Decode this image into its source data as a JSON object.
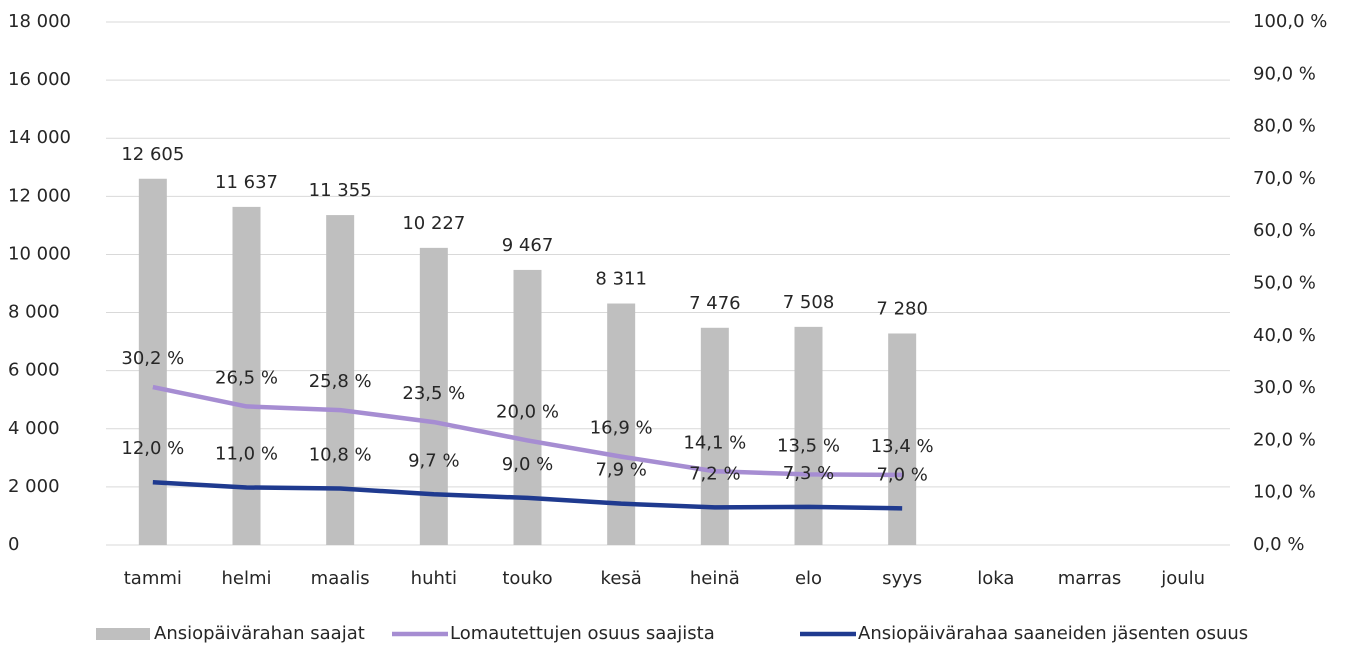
{
  "chart_data": {
    "type": "bar-line",
    "categories": [
      "tammi",
      "helmi",
      "maalis",
      "huhti",
      "touko",
      "kesä",
      "heinä",
      "elo",
      "syys",
      "loka",
      "marras",
      "joulu"
    ],
    "series": [
      {
        "name": "Ansiopäivärahan saajat",
        "type": "bar",
        "color": "#bfbfbf",
        "values": [
          12605,
          11637,
          11355,
          10227,
          9467,
          8311,
          7476,
          7508,
          7280,
          null,
          null,
          null
        ],
        "value_labels": [
          "12 605",
          "11 637",
          "11 355",
          "10 227",
          "9 467",
          "8 311",
          "7 476",
          "7 508",
          "7 280",
          null,
          null,
          null
        ]
      },
      {
        "name": "Lomautettujen osuus saajista",
        "type": "line",
        "axis": "y2",
        "color": "#a68dd2",
        "values": [
          30.2,
          26.5,
          25.8,
          23.5,
          20.0,
          16.9,
          14.1,
          13.5,
          13.4,
          null,
          null,
          null
        ],
        "value_labels": [
          "30,2 %",
          "26,5 %",
          "25,8 %",
          "23,5 %",
          "20,0 %",
          "16,9 %",
          "14,1 %",
          "13,5 %",
          "13,4 %",
          null,
          null,
          null
        ]
      },
      {
        "name": "Ansiopäivärahaa saaneiden jäsenten osuus",
        "type": "line",
        "axis": "y2",
        "color": "#1f3a8f",
        "values": [
          12.0,
          11.0,
          10.8,
          9.7,
          9.0,
          7.9,
          7.2,
          7.3,
          7.0,
          null,
          null,
          null
        ],
        "value_labels": [
          "12,0 %",
          "11,0 %",
          "10,8 %",
          "9,7 %",
          "9,0 %",
          "7,9 %",
          "7,2 %",
          "7,3 %",
          "7,0 %",
          null,
          null,
          null
        ]
      }
    ],
    "ylim": [
      0,
      18000
    ],
    "yticks": [
      0,
      {
        "value": 2000,
        "label": "2 000"
      },
      {
        "value": 4000,
        "label": "4 000"
      },
      {
        "value": 6000,
        "label": "6 000"
      },
      {
        "value": 8000,
        "label": "8 000"
      },
      {
        "value": 10000,
        "label": "10 000"
      },
      {
        "value": 12000,
        "label": "12 000"
      },
      {
        "value": 14000,
        "label": "14 000"
      },
      {
        "value": 16000,
        "label": "16 000"
      },
      {
        "value": 18000,
        "label": "18 000"
      }
    ],
    "y2lim": [
      0,
      100
    ],
    "y2ticks": [
      {
        "value": 0,
        "label": "0,0 %"
      },
      {
        "value": 10,
        "label": "10,0 %"
      },
      {
        "value": 20,
        "label": "20,0 %"
      },
      {
        "value": 30,
        "label": "30,0 %"
      },
      {
        "value": 40,
        "label": "40,0 %"
      },
      {
        "value": 50,
        "label": "50,0 %"
      },
      {
        "value": 60,
        "label": "60,0 %"
      },
      {
        "value": 70,
        "label": "70,0 %"
      },
      {
        "value": 80,
        "label": "80,0 %"
      },
      {
        "value": 90,
        "label": "90,0 %"
      },
      {
        "value": 100,
        "label": "100,0 %"
      }
    ],
    "grid": true,
    "legend": "bottom"
  }
}
